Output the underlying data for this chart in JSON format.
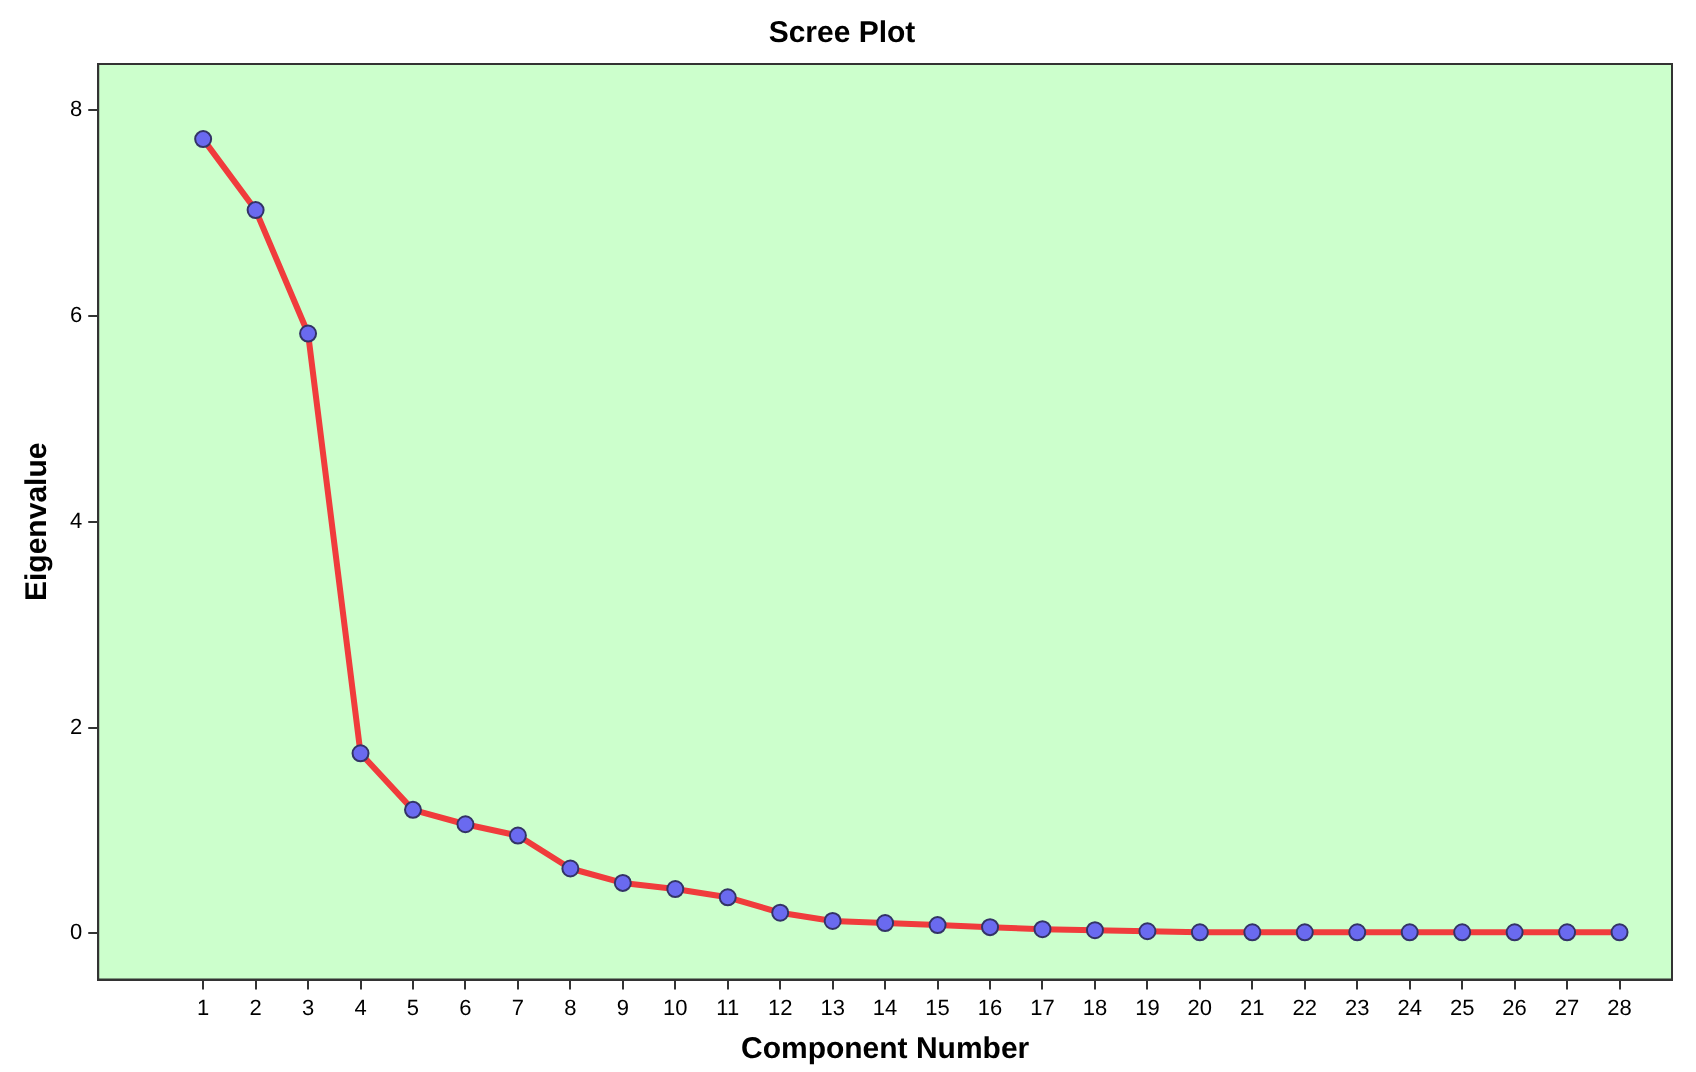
{
  "chart_data": {
    "type": "line",
    "title": "Scree Plot",
    "xlabel": "Component Number",
    "ylabel": "Eigenvalue",
    "x": [
      1,
      2,
      3,
      4,
      5,
      6,
      7,
      8,
      9,
      10,
      11,
      12,
      13,
      14,
      15,
      16,
      17,
      18,
      19,
      20,
      21,
      22,
      23,
      24,
      25,
      26,
      27,
      28
    ],
    "series": [
      {
        "color": "#f03c3c",
        "values": [
          7.72,
          7.03,
          5.83,
          1.75,
          1.2,
          1.06,
          0.95,
          0.63,
          0.49,
          0.43,
          0.35,
          0.2,
          0.12,
          0.1,
          0.08,
          0.06,
          0.04,
          0.03,
          0.02,
          0.01,
          0.01,
          0.01,
          0.01,
          0.01,
          0.01,
          0.01,
          0.01,
          0.01
        ]
      }
    ],
    "xlim": [
      -1,
      29
    ],
    "xticks": [
      1,
      2,
      3,
      4,
      5,
      6,
      7,
      8,
      9,
      10,
      11,
      12,
      13,
      14,
      15,
      16,
      17,
      18,
      19,
      20,
      21,
      22,
      23,
      24,
      25,
      26,
      27,
      28
    ],
    "ylim": [
      -0.45,
      8.45
    ],
    "yticks": [
      0,
      2,
      4,
      6,
      8
    ],
    "grid": false,
    "legend": false,
    "marker": "circle",
    "line_style": "solid"
  }
}
